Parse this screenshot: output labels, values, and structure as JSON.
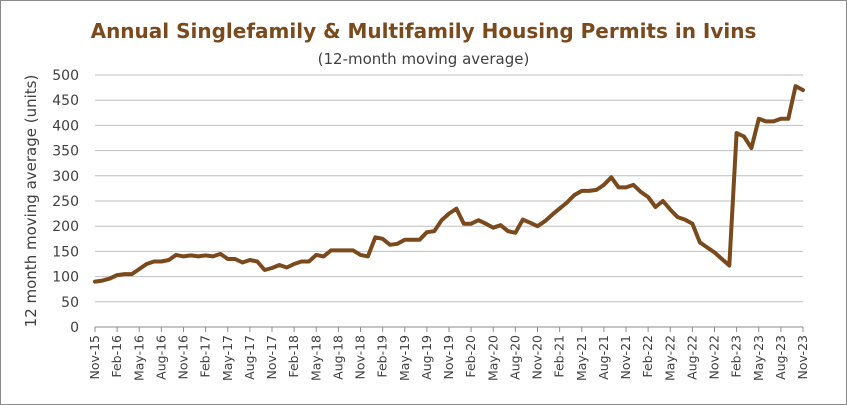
{
  "chart_data": {
    "type": "line",
    "title": "Annual Singlefamily & Multifamily Housing Permits in Ivins",
    "subtitle": "(12-month moving average)",
    "ylabel": "12 month moving average (units)",
    "xlabel": "",
    "ylim": [
      0,
      500
    ],
    "yticks": [
      0,
      50,
      100,
      150,
      200,
      250,
      300,
      350,
      400,
      450,
      500
    ],
    "grid": "horizontal",
    "legend": "none",
    "line_color": "#7b4a1c",
    "x_tick_labels": [
      "Nov-15",
      "Feb-16",
      "May-16",
      "Aug-16",
      "Nov-16",
      "Feb-17",
      "May-17",
      "Aug-17",
      "Nov-17",
      "Feb-18",
      "May-18",
      "Aug-18",
      "Nov-18",
      "Feb-19",
      "May-19",
      "Aug-19",
      "Nov-19",
      "Feb-20",
      "May-20",
      "Aug-20",
      "Nov-20",
      "Feb-21",
      "May-21",
      "Aug-21",
      "Nov-21",
      "Feb-22",
      "May-22",
      "Aug-22",
      "Nov-22",
      "Feb-23",
      "May-23",
      "Aug-23",
      "Nov-23"
    ],
    "x": [
      "Nov-15",
      "Dec-15",
      "Jan-16",
      "Feb-16",
      "Mar-16",
      "Apr-16",
      "May-16",
      "Jun-16",
      "Jul-16",
      "Aug-16",
      "Sep-16",
      "Oct-16",
      "Nov-16",
      "Dec-16",
      "Jan-17",
      "Feb-17",
      "Mar-17",
      "Apr-17",
      "May-17",
      "Jun-17",
      "Jul-17",
      "Aug-17",
      "Sep-17",
      "Oct-17",
      "Nov-17",
      "Dec-17",
      "Jan-18",
      "Feb-18",
      "Mar-18",
      "Apr-18",
      "May-18",
      "Jun-18",
      "Jul-18",
      "Aug-18",
      "Sep-18",
      "Oct-18",
      "Nov-18",
      "Dec-18",
      "Jan-19",
      "Feb-19",
      "Mar-19",
      "Apr-19",
      "May-19",
      "Jun-19",
      "Jul-19",
      "Aug-19",
      "Sep-19",
      "Oct-19",
      "Nov-19",
      "Dec-19",
      "Jan-20",
      "Feb-20",
      "Mar-20",
      "Apr-20",
      "May-20",
      "Jun-20",
      "Jul-20",
      "Aug-20",
      "Sep-20",
      "Oct-20",
      "Nov-20",
      "Dec-20",
      "Jan-21",
      "Feb-21",
      "Mar-21",
      "Apr-21",
      "May-21",
      "Jun-21",
      "Jul-21",
      "Aug-21",
      "Sep-21",
      "Oct-21",
      "Nov-21",
      "Dec-21",
      "Jan-22",
      "Feb-22",
      "Mar-22",
      "Apr-22",
      "May-22",
      "Jun-22",
      "Jul-22",
      "Aug-22",
      "Sep-22",
      "Oct-22",
      "Nov-22",
      "Dec-22",
      "Jan-23",
      "Feb-23",
      "Mar-23",
      "Apr-23",
      "May-23",
      "Jun-23",
      "Jul-23",
      "Aug-23",
      "Sep-23",
      "Oct-23",
      "Nov-23"
    ],
    "series": [
      {
        "values": [
          90,
          92,
          96,
          103,
          105,
          105,
          115,
          125,
          130,
          130,
          133,
          143,
          140,
          142,
          140,
          142,
          140,
          145,
          135,
          135,
          128,
          133,
          130,
          113,
          117,
          123,
          118,
          125,
          130,
          130,
          143,
          140,
          152,
          152,
          152,
          152,
          143,
          140,
          178,
          175,
          163,
          165,
          173,
          173,
          173,
          188,
          190,
          212,
          225,
          235,
          205,
          205,
          212,
          205,
          197,
          202,
          190,
          187,
          213,
          207,
          200,
          210,
          223,
          235,
          247,
          262,
          270,
          270,
          272,
          282,
          297,
          277,
          277,
          282,
          268,
          258,
          238,
          250,
          233,
          218,
          213,
          205,
          168,
          158,
          148,
          135,
          122,
          385,
          378,
          355,
          413,
          408,
          408,
          413,
          413,
          478,
          470
        ]
      }
    ]
  }
}
